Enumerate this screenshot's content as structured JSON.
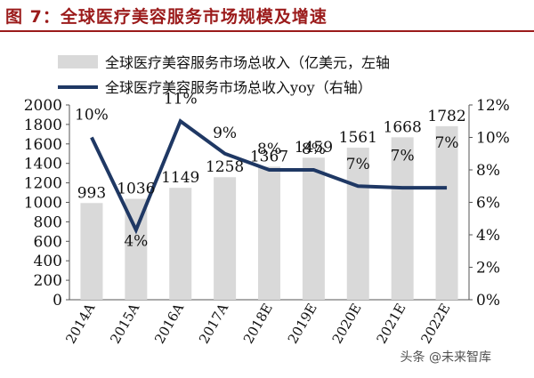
{
  "title": "图 7：全球医疗美容服务市场规模及增速",
  "watermark": "头条 @未来智库",
  "chart_data": {
    "type": "bar+line",
    "categories": [
      "2014A",
      "2015A",
      "2016A",
      "2017A",
      "2018E",
      "2019E",
      "2020E",
      "2021E",
      "2022E"
    ],
    "series": [
      {
        "name": "全球医疗美容服务市场总收入（亿美元，左轴",
        "type": "bar",
        "axis": "left",
        "values": [
          993,
          1036,
          1149,
          1258,
          1367,
          1459,
          1561,
          1668,
          1782
        ],
        "labels": [
          "993",
          "1036",
          "1149",
          "1258",
          "1367",
          "1459",
          "1561",
          "1668",
          "1782"
        ],
        "color": "#d9d9d9"
      },
      {
        "name": "全球医疗美容服务市场总收入yoy（右轴）",
        "type": "line",
        "axis": "right",
        "values": [
          10,
          4.3,
          11,
          9,
          8,
          8,
          7,
          6.9,
          6.9
        ],
        "labels": [
          "10%",
          "4%",
          "11%",
          "9%",
          "8%",
          "8%",
          "7%",
          "7%",
          "7%"
        ],
        "color": "#1f3864"
      }
    ],
    "y_left": {
      "min": 0,
      "max": 2000,
      "ticks": [
        "0",
        "200",
        "400",
        "600",
        "800",
        "1000",
        "1200",
        "1400",
        "1600",
        "1800",
        "2000"
      ]
    },
    "y_right": {
      "min": 0,
      "max": 12,
      "ticks": [
        "0%",
        "2%",
        "4%",
        "6%",
        "8%",
        "10%",
        "12%"
      ]
    },
    "legend_position": "top-left",
    "grid": false
  }
}
